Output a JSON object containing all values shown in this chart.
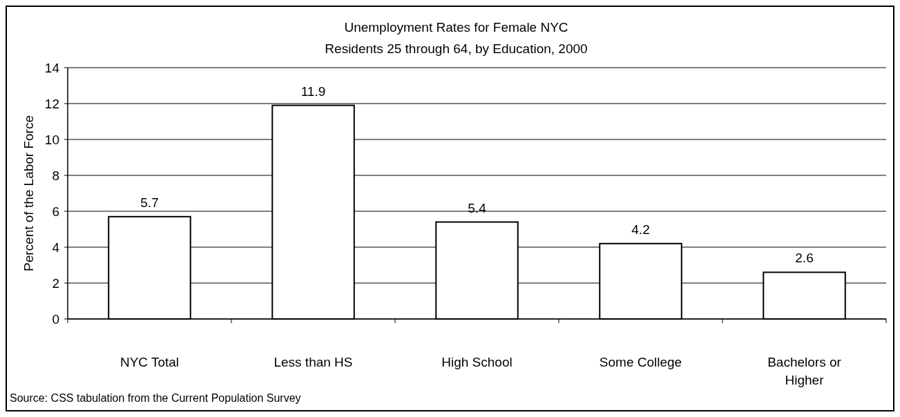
{
  "chart_data": {
    "type": "bar",
    "title": "Unemployment Rates for Female NYC\nResidents 25 through 64, by Education, 2000",
    "ylabel": "Percent of the Labor Force",
    "categories": [
      "NYC Total",
      "Less than HS",
      "High School",
      "Some College",
      "Bachelors or\nHigher"
    ],
    "values": [
      5.7,
      11.9,
      5.4,
      4.2,
      2.6
    ],
    "color": "#ffffff",
    "ylim": [
      0,
      14
    ],
    "yticks": [
      0,
      2,
      4,
      6,
      8,
      10,
      12,
      14
    ],
    "grid": "y",
    "data_labels": true,
    "annotations": [
      "Source: CSS tabulation from the Current Population Survey"
    ]
  }
}
